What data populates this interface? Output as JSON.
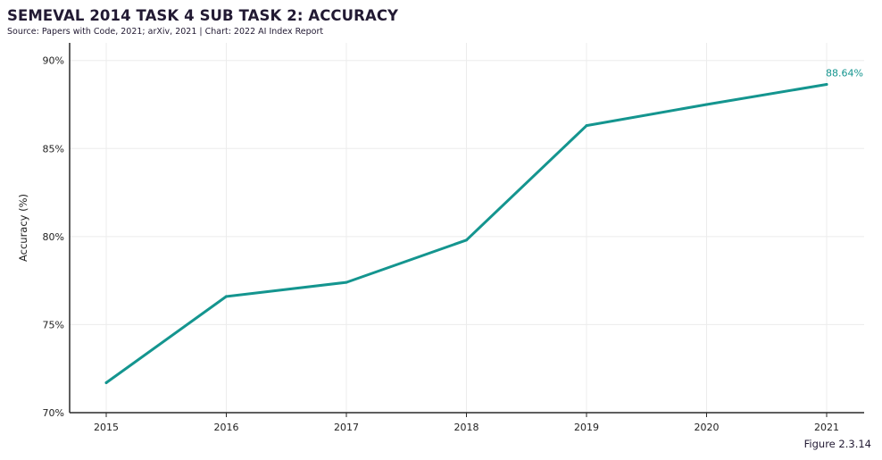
{
  "header": {
    "title": "SEMEVAL 2014 TASK 4 SUB TASK 2: ACCURACY",
    "source": "Source: Papers with Code, 2021; arXiv, 2021 | Chart: 2022 AI Index Report"
  },
  "footer": {
    "figure_label": "Figure 2.3.14"
  },
  "colors": {
    "line": "#14958f",
    "grid": "#ececec",
    "axis": "#2a2a2a"
  },
  "chart_data": {
    "type": "line",
    "title": "SEMEVAL 2014 TASK 4 SUB TASK 2: ACCURACY",
    "xlabel": "",
    "ylabel": "Accuracy (%)",
    "x": [
      "2015",
      "2016",
      "2017",
      "2018",
      "2019",
      "2020",
      "2021"
    ],
    "series": [
      {
        "values": [
          71.7,
          76.6,
          77.4,
          79.8,
          86.3,
          87.5,
          88.64
        ]
      }
    ],
    "ylim": [
      70,
      91
    ],
    "yticks": [
      70,
      75,
      80,
      85,
      90
    ],
    "ytick_labels": [
      "70%",
      "75%",
      "80%",
      "85%",
      "90%"
    ],
    "grid": true,
    "annotation": {
      "x": "2021",
      "text": "88.64%"
    }
  }
}
